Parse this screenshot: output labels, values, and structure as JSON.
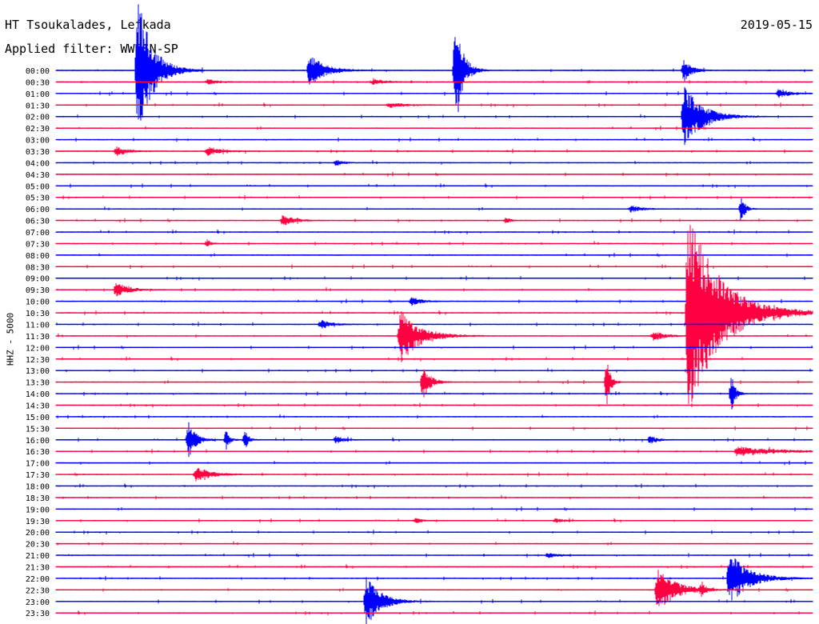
{
  "header": {
    "station": "HT Tsoukalades, Lefkada",
    "filter": "Applied filter: WWSSN-SP",
    "date": "2019-05-15"
  },
  "axis": {
    "ylabel": "HHZ - 5000"
  },
  "colors": {
    "trace_a": "#0000ff",
    "trace_b": "#ff0040",
    "text": "#000000"
  },
  "chart_data": {
    "type": "line",
    "title": "",
    "xlabel": "",
    "ylabel": "HHZ - 5000",
    "row_duration_minutes": 30,
    "row_labels": [
      "00:00",
      "00:30",
      "01:00",
      "01:30",
      "02:00",
      "02:30",
      "03:00",
      "03:30",
      "04:00",
      "04:30",
      "05:00",
      "05:30",
      "06:00",
      "06:30",
      "07:00",
      "07:30",
      "08:00",
      "08:30",
      "09:00",
      "09:30",
      "10:00",
      "10:30",
      "11:00",
      "11:30",
      "12:00",
      "12:30",
      "13:00",
      "13:30",
      "14:00",
      "14:30",
      "15:00",
      "15:30",
      "16:00",
      "16:30",
      "17:00",
      "17:30",
      "18:00",
      "18:30",
      "19:00",
      "19:30",
      "20:00",
      "20:30",
      "21:00",
      "21:30",
      "22:00",
      "22:30",
      "23:00",
      "23:30"
    ],
    "row_colors": [
      "trace_a",
      "trace_b"
    ],
    "events": [
      {
        "row": 0,
        "t": 0.108,
        "amp": 95,
        "dur": 0.04
      },
      {
        "row": 0,
        "t": 0.335,
        "amp": 22,
        "dur": 0.04
      },
      {
        "row": 0,
        "t": 0.528,
        "amp": 75,
        "dur": 0.02
      },
      {
        "row": 0,
        "t": 0.83,
        "amp": 14,
        "dur": 0.02
      },
      {
        "row": 1,
        "t": 0.2,
        "amp": 3,
        "dur": 0.03
      },
      {
        "row": 1,
        "t": 0.42,
        "amp": 4,
        "dur": 0.03
      },
      {
        "row": 2,
        "t": 0.955,
        "amp": 6,
        "dur": 0.03
      },
      {
        "row": 3,
        "t": 0.44,
        "amp": 3,
        "dur": 0.05
      },
      {
        "row": 4,
        "t": 0.83,
        "amp": 40,
        "dur": 0.05
      },
      {
        "row": 7,
        "t": 0.08,
        "amp": 6,
        "dur": 0.03
      },
      {
        "row": 7,
        "t": 0.2,
        "amp": 6,
        "dur": 0.03
      },
      {
        "row": 8,
        "t": 0.37,
        "amp": 4,
        "dur": 0.02
      },
      {
        "row": 12,
        "t": 0.76,
        "amp": 4,
        "dur": 0.03
      },
      {
        "row": 12,
        "t": 0.906,
        "amp": 18,
        "dur": 0.01
      },
      {
        "row": 13,
        "t": 0.3,
        "amp": 8,
        "dur": 0.03
      },
      {
        "row": 13,
        "t": 0.595,
        "amp": 4,
        "dur": 0.01
      },
      {
        "row": 15,
        "t": 0.2,
        "amp": 5,
        "dur": 0.01
      },
      {
        "row": 19,
        "t": 0.08,
        "amp": 10,
        "dur": 0.03
      },
      {
        "row": 20,
        "t": 0.47,
        "amp": 5,
        "dur": 0.03
      },
      {
        "row": 21,
        "t": 0.835,
        "amp": 130,
        "dur": 0.09
      },
      {
        "row": 22,
        "t": 0.35,
        "amp": 6,
        "dur": 0.03
      },
      {
        "row": 23,
        "t": 0.455,
        "amp": 36,
        "dur": 0.05
      },
      {
        "row": 23,
        "t": 0.79,
        "amp": 6,
        "dur": 0.03
      },
      {
        "row": 27,
        "t": 0.485,
        "amp": 22,
        "dur": 0.02
      },
      {
        "row": 27,
        "t": 0.728,
        "amp": 30,
        "dur": 0.01
      },
      {
        "row": 28,
        "t": 0.893,
        "amp": 26,
        "dur": 0.01
      },
      {
        "row": 32,
        "t": 0.175,
        "amp": 24,
        "dur": 0.02
      },
      {
        "row": 32,
        "t": 0.225,
        "amp": 12,
        "dur": 0.01
      },
      {
        "row": 32,
        "t": 0.25,
        "amp": 12,
        "dur": 0.01
      },
      {
        "row": 32,
        "t": 0.37,
        "amp": 5,
        "dur": 0.02
      },
      {
        "row": 32,
        "t": 0.785,
        "amp": 5,
        "dur": 0.02
      },
      {
        "row": 33,
        "t": 0.9,
        "amp": 6,
        "dur": 0.1
      },
      {
        "row": 35,
        "t": 0.185,
        "amp": 10,
        "dur": 0.04
      },
      {
        "row": 39,
        "t": 0.475,
        "amp": 3,
        "dur": 0.02
      },
      {
        "row": 39,
        "t": 0.66,
        "amp": 3,
        "dur": 0.02
      },
      {
        "row": 42,
        "t": 0.65,
        "amp": 3,
        "dur": 0.03
      },
      {
        "row": 44,
        "t": 0.89,
        "amp": 36,
        "dur": 0.05
      },
      {
        "row": 45,
        "t": 0.795,
        "amp": 28,
        "dur": 0.05
      },
      {
        "row": 45,
        "t": 0.854,
        "amp": 8,
        "dur": 0.01
      },
      {
        "row": 46,
        "t": 0.41,
        "amp": 32,
        "dur": 0.04
      }
    ]
  }
}
